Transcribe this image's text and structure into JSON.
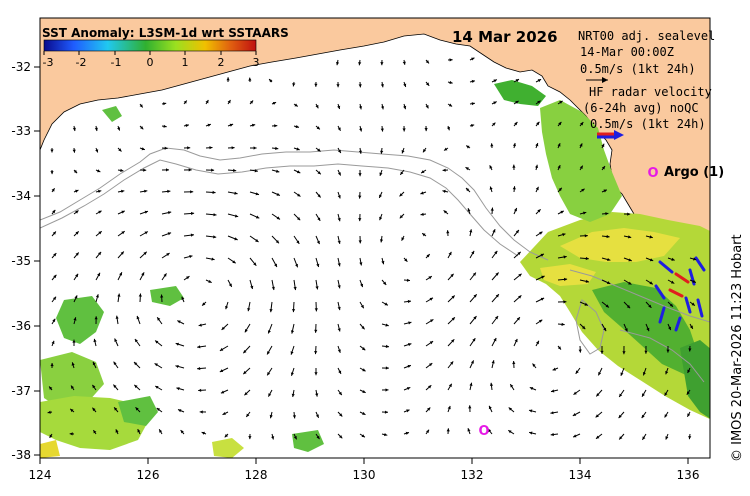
{
  "legend": {
    "title": "SST Anomaly: L3SM-1d wrt SSTAARS",
    "ticks": [
      "-3",
      "-2",
      "-1",
      "0",
      "1",
      "2",
      "3"
    ],
    "colors": [
      "#0a0a8c",
      "#1f5cff",
      "#20c8f0",
      "#30b030",
      "#9ae020",
      "#f0c000",
      "#e06010",
      "#c01010"
    ]
  },
  "map": {
    "date": "14 Mar 2026",
    "land_color": "#fac99e",
    "x_ticks": [
      "124",
      "126",
      "128",
      "130",
      "132",
      "134",
      "136"
    ],
    "y_ticks": [
      "-32",
      "-33",
      "-34",
      "-35",
      "-36",
      "-37",
      "-38"
    ],
    "argo_marker": "O",
    "argo_label": "Argo (1)",
    "argo_color": "#e619e6"
  },
  "annotations": {
    "current_line1": "NRT00 adj. sealevel",
    "current_line2": "14-Mar 00:00Z",
    "current_scale": "0.5m/s (1kt 24h)",
    "radar_line1": "HF radar velocity",
    "radar_line2": "(6-24h avg) noQC",
    "radar_scale": "0.5m/s (1kt 24h)"
  },
  "credit": "© IMOS 20-Mar-2026 11:23 Hobart"
}
